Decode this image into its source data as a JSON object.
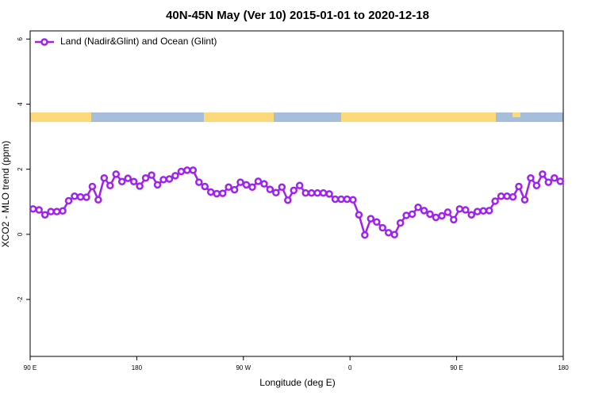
{
  "chart_data": {
    "type": "line",
    "title": "40N-45N May (Ver 10)   2015-01-01 to 2020-12-18",
    "x_label": "Longitude (deg E)",
    "y_label": "XCO2 - MLO trend (ppm)",
    "legend": "top-left",
    "x": [
      92.5,
      97.5,
      102.5,
      107.5,
      112.5,
      117.5,
      122.5,
      127.5,
      132.5,
      137.5,
      142.5,
      147.5,
      152.5,
      157.5,
      162.5,
      167.5,
      172.5,
      177.5,
      182.5,
      187.5,
      192.5,
      197.5,
      202.5,
      207.5,
      212.5,
      217.5,
      222.5,
      227.5,
      232.5,
      237.5,
      242.5,
      247.5,
      252.5,
      257.5,
      262.5,
      267.5,
      272.5,
      277.5,
      282.5,
      287.5,
      292.5,
      297.5,
      302.5,
      307.5,
      312.5,
      317.5,
      322.5,
      327.5,
      332.5,
      337.5,
      342.5,
      347.5,
      352.5,
      357.5,
      362.5,
      367.5,
      372.5,
      377.5,
      382.5,
      387.5,
      392.5,
      397.5,
      402.5,
      407.5,
      412.5,
      417.5,
      422.5,
      427.5,
      432.5,
      437.5,
      442.5,
      447.5,
      452.5,
      457.5,
      462.5,
      467.5,
      472.5,
      477.5,
      482.5,
      487.5,
      492.5,
      497.5,
      502.5,
      507.5,
      512.5,
      517.5,
      522.5,
      527.5,
      532.5,
      537.5
    ],
    "series": [
      {
        "name": "Land (Nadir&Glint) and Ocean (Glint)",
        "color": "#a020f0",
        "values": [
          0.78,
          0.75,
          0.6,
          0.7,
          0.7,
          0.72,
          1.03,
          1.17,
          1.15,
          1.14,
          1.47,
          1.06,
          1.73,
          1.5,
          1.85,
          1.62,
          1.72,
          1.62,
          1.48,
          1.73,
          1.82,
          1.52,
          1.68,
          1.7,
          1.8,
          1.93,
          1.97,
          1.97,
          1.6,
          1.47,
          1.3,
          1.25,
          1.26,
          1.45,
          1.37,
          1.6,
          1.52,
          1.45,
          1.63,
          1.55,
          1.38,
          1.28,
          1.45,
          1.05,
          1.35,
          1.5,
          1.27,
          1.27,
          1.27,
          1.27,
          1.24,
          1.08,
          1.08,
          1.08,
          1.06,
          0.6,
          -0.02,
          0.48,
          0.38,
          0.2,
          0.05,
          -0.01,
          0.35,
          0.58,
          0.62,
          0.83,
          0.73,
          0.62,
          0.52,
          0.57,
          0.68,
          0.45,
          0.78,
          0.75,
          0.6,
          0.7,
          0.72,
          0.73,
          1.02,
          1.17,
          1.17,
          1.15,
          1.47,
          1.06,
          1.73,
          1.5,
          1.85,
          1.6,
          1.73,
          1.63
        ]
      }
    ],
    "xlim": [
      90,
      540
    ],
    "xticks": [
      {
        "value": 90,
        "label": "90 E"
      },
      180,
      {
        "value": 270,
        "label": "90 W"
      },
      {
        "value": 360,
        "label": "0"
      },
      {
        "value": 450,
        "label": "90 E"
      },
      {
        "value": 540,
        "label": "180"
      }
    ],
    "ylim": [
      -3.75,
      6.25
    ],
    "yticks": [
      -2,
      0,
      2,
      4,
      6
    ]
  }
}
